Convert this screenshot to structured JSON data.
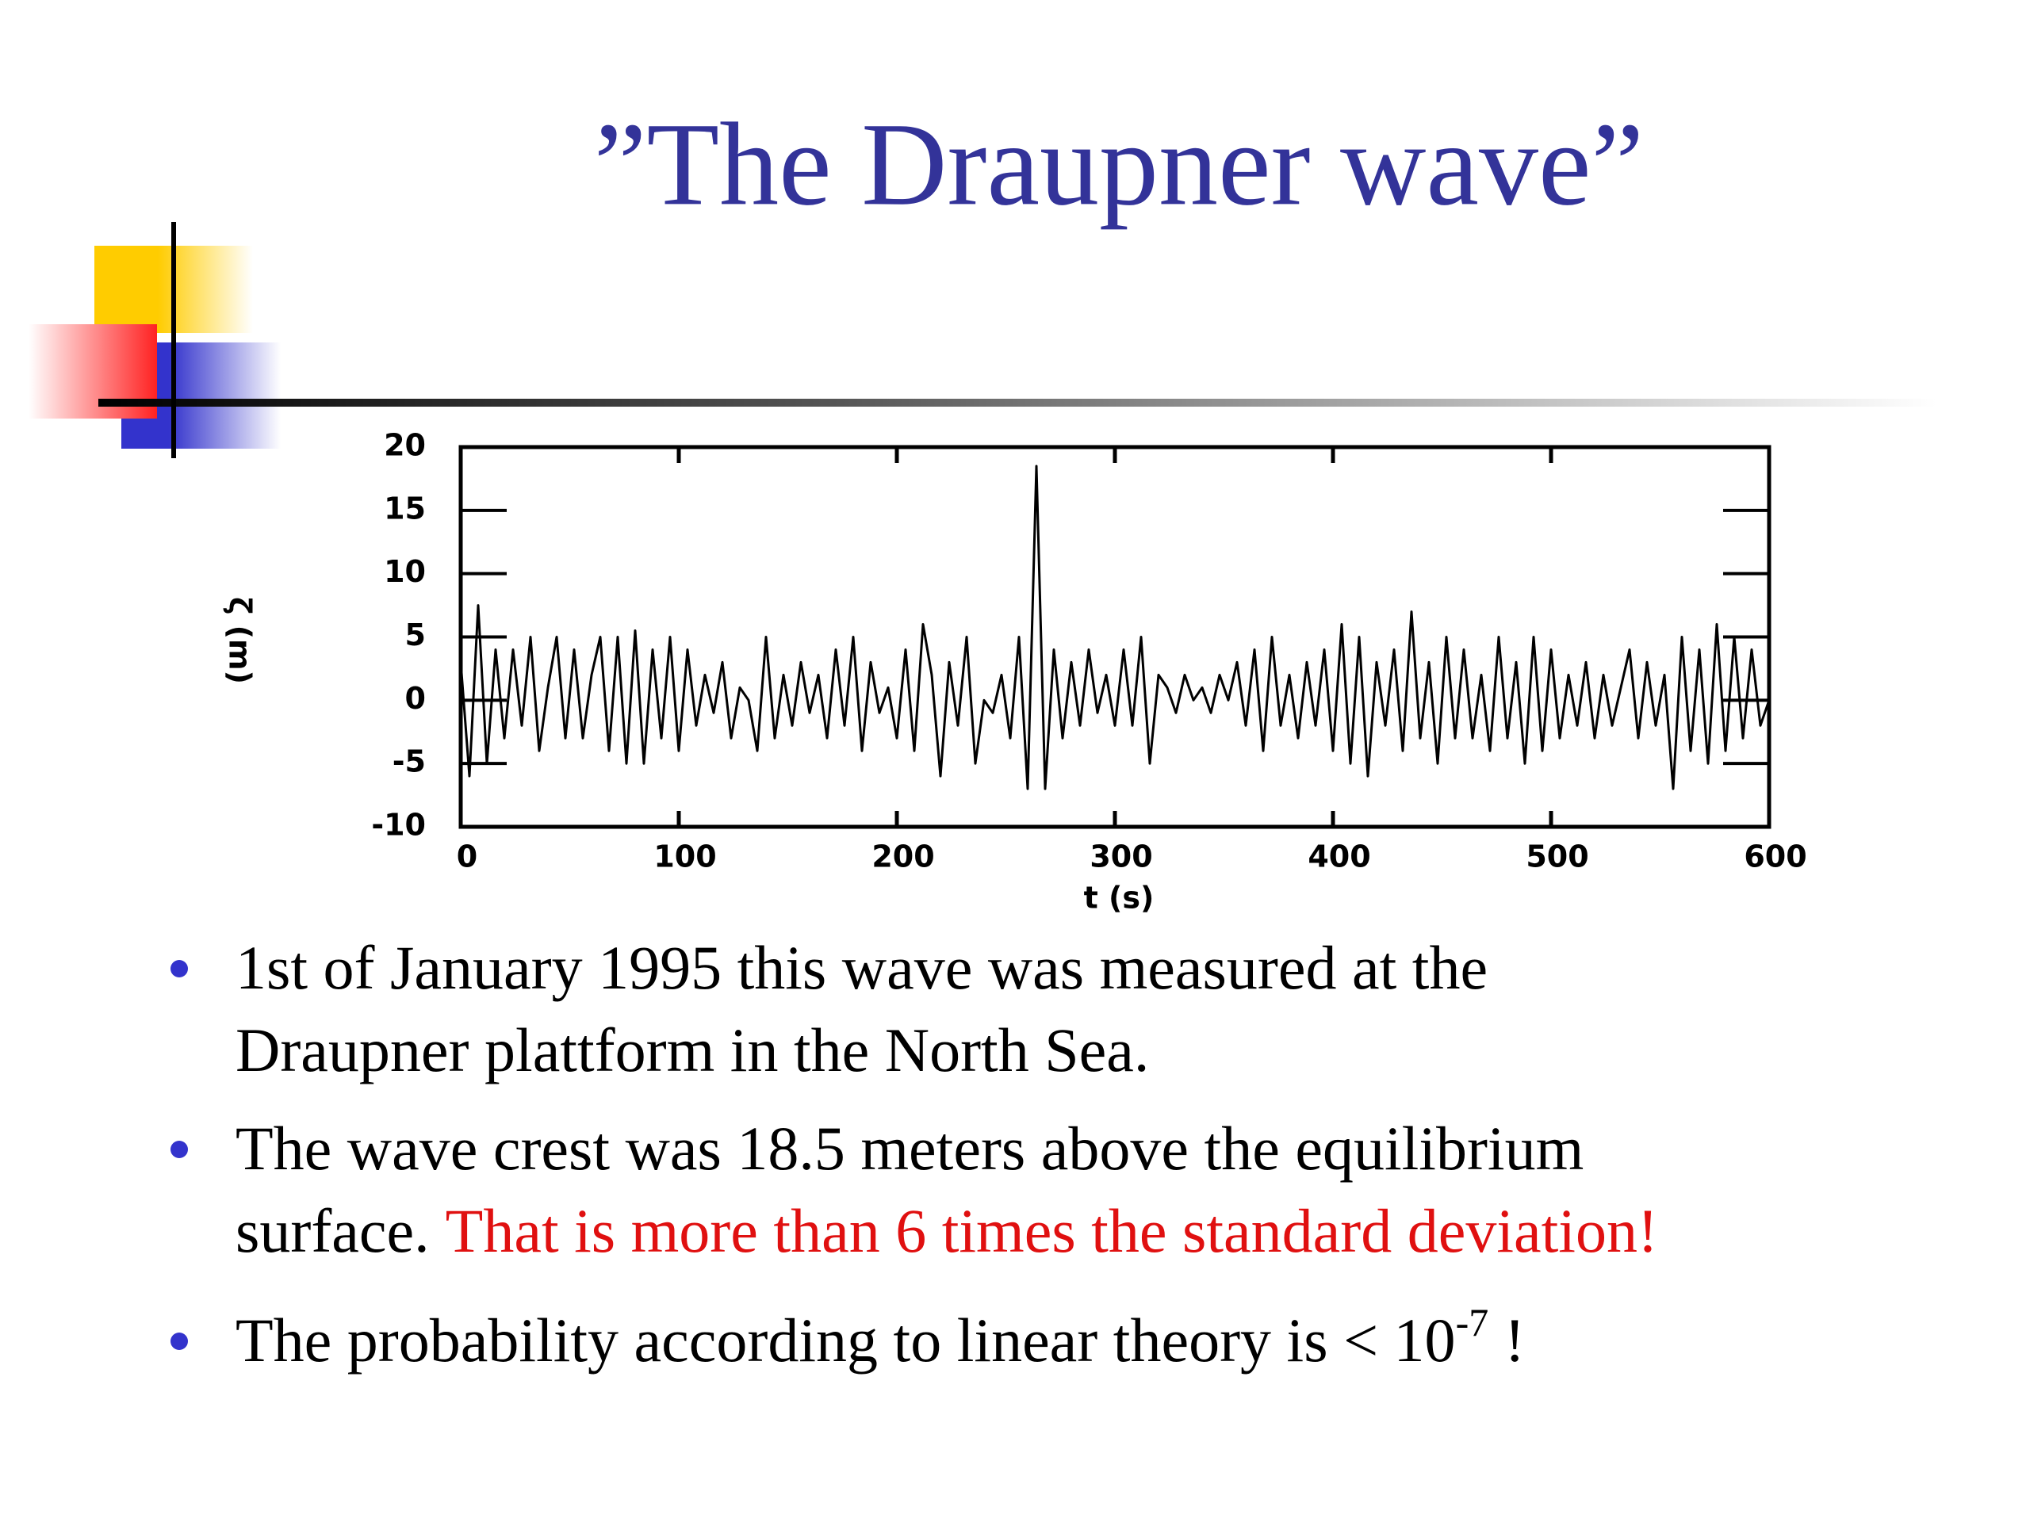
{
  "slide": {
    "title": "”The Draupner wave”",
    "bullets": [
      {
        "lines": [
          "1st of January 1995 this wave was measured at the",
          "Draupner plattform in the North Sea."
        ]
      },
      {
        "lines": [
          "The wave crest was 18.5 meters above the equilibrium",
          "surface."
        ],
        "highlight": "That is more than 6 times the standard deviation!"
      },
      {
        "lines": [
          "The probability according to linear theory is < 10"
        ],
        "superscript": "-7",
        "suffix": "!"
      }
    ]
  },
  "chart_data": {
    "type": "line",
    "x_label": "t (s)",
    "y_label": "ζ (m)",
    "color": "#000000",
    "xlim": [
      0,
      600
    ],
    "xticks": [
      0,
      100,
      200,
      300,
      400,
      500,
      600
    ],
    "ylim": [
      -10,
      20
    ],
    "yticks": [
      -10,
      -5,
      0,
      5,
      10,
      15,
      20
    ],
    "x": [
      0,
      4,
      8,
      12,
      16,
      20,
      24,
      28,
      32,
      36,
      40,
      44,
      48,
      52,
      56,
      60,
      64,
      68,
      72,
      76,
      80,
      84,
      88,
      92,
      96,
      100,
      104,
      108,
      112,
      116,
      120,
      124,
      128,
      132,
      136,
      140,
      144,
      148,
      152,
      156,
      160,
      164,
      168,
      172,
      176,
      180,
      184,
      188,
      192,
      196,
      200,
      204,
      208,
      212,
      216,
      220,
      224,
      228,
      232,
      236,
      240,
      244,
      248,
      252,
      256,
      260,
      264,
      268,
      272,
      276,
      280,
      284,
      288,
      292,
      296,
      300,
      304,
      308,
      312,
      316,
      320,
      324,
      328,
      332,
      336,
      340,
      344,
      348,
      352,
      356,
      360,
      364,
      368,
      372,
      376,
      380,
      384,
      388,
      392,
      396,
      400,
      404,
      408,
      412,
      416,
      420,
      424,
      428,
      432,
      436,
      440,
      444,
      448,
      452,
      456,
      460,
      464,
      468,
      472,
      476,
      480,
      484,
      488,
      492,
      496,
      500,
      504,
      508,
      512,
      516,
      520,
      524,
      528,
      532,
      536,
      540,
      544,
      548,
      552,
      556,
      560,
      564,
      568,
      572,
      576,
      580,
      584,
      588,
      592,
      596,
      600
    ],
    "values": [
      3,
      -6,
      7.5,
      -5,
      4,
      -3,
      4,
      -2,
      5,
      -4,
      1,
      5,
      -3,
      4,
      -3,
      2,
      5,
      -4,
      5,
      -5,
      5.5,
      -5,
      4,
      -3,
      5,
      -4,
      4,
      -2,
      2,
      -1,
      3,
      -3,
      1,
      0,
      -4,
      5,
      -3,
      2,
      -2,
      3,
      -1,
      2,
      -3,
      4,
      -2,
      5,
      -4,
      3,
      -1,
      1,
      -3,
      4,
      -4,
      6,
      2,
      -6,
      3,
      -2,
      5,
      -5,
      0,
      -1,
      2,
      -3,
      5,
      -7,
      18.5,
      -7,
      4,
      -3,
      3,
      -2,
      4,
      -1,
      2,
      -2,
      4,
      -2,
      5,
      -5,
      2,
      1,
      -1,
      2,
      0,
      1,
      -1,
      2,
      0,
      3,
      -2,
      4,
      -4,
      5,
      -2,
      2,
      -3,
      3,
      -2,
      4,
      -4,
      6,
      -5,
      5,
      -6,
      3,
      -2,
      4,
      -4,
      7,
      -3,
      3,
      -5,
      5,
      -3,
      4,
      -3,
      2,
      -4,
      5,
      -3,
      3,
      -5,
      5,
      -4,
      4,
      -3,
      2,
      -2,
      3,
      -3,
      2,
      -2,
      1,
      4,
      -3,
      3,
      -2,
      2,
      -7,
      5,
      -4,
      4,
      -5,
      6,
      -4,
      5,
      -3,
      4,
      -2,
      0
    ]
  }
}
